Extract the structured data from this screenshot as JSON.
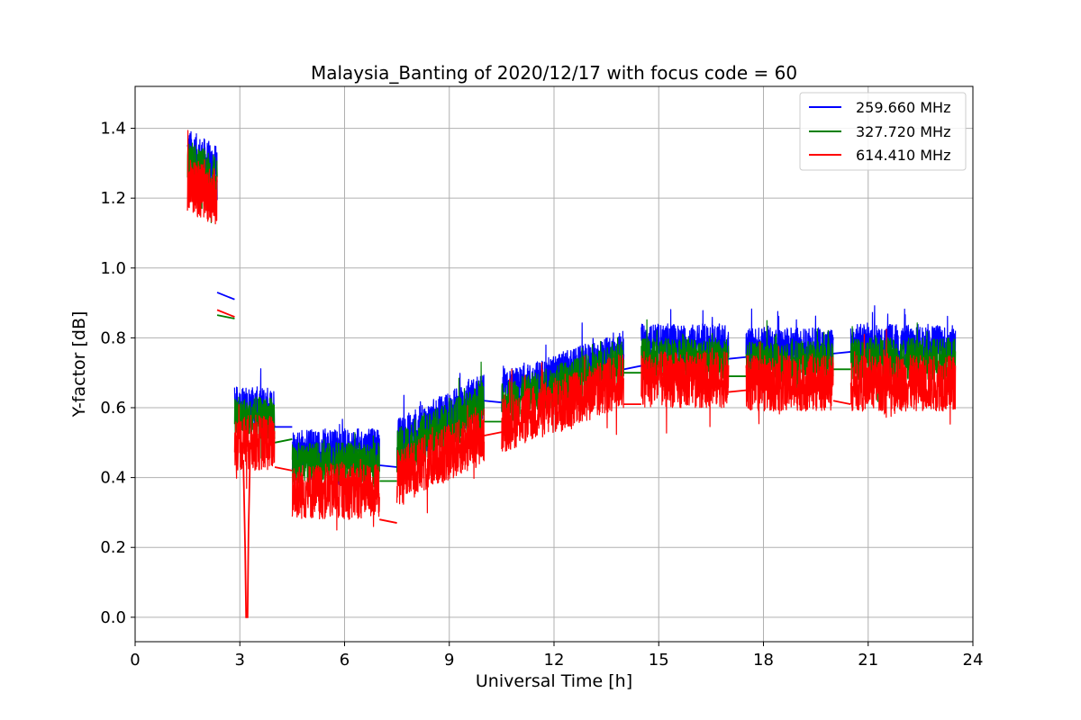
{
  "chart_data": {
    "type": "line",
    "title": "Malaysia_Banting of 2020/12/17 with focus code = 60",
    "xlabel": "Universal Time [h]",
    "ylabel": "Y-factor [dB]",
    "xlim": [
      0,
      24
    ],
    "ylim": [
      -0.07,
      1.52
    ],
    "xticks": [
      0,
      3,
      6,
      9,
      12,
      15,
      18,
      21,
      24
    ],
    "yticks": [
      0.0,
      0.2,
      0.4,
      0.6,
      0.8,
      1.0,
      1.2,
      1.4
    ],
    "ytick_labels": [
      "0.0",
      "0.2",
      "0.4",
      "0.6",
      "0.8",
      "1.0",
      "1.2",
      "1.4"
    ],
    "grid": true,
    "legend_position": "top-right",
    "series": [
      {
        "name": "259.660 MHz",
        "color": "#0000ff",
        "segments": [
          {
            "x": [
              1.5,
              2.35
            ],
            "center": [
              1.33,
              1.28
            ],
            "amp": 0.07
          },
          {
            "x": [
              2.85,
              4.0
            ],
            "center": [
              0.6,
              0.6
            ],
            "amp": 0.06
          },
          {
            "x": [
              4.5,
              7.0
            ],
            "center": [
              0.48,
              0.48
            ],
            "amp": 0.06
          },
          {
            "x": [
              7.5,
              10.0
            ],
            "center": [
              0.5,
              0.63
            ],
            "amp": 0.07
          },
          {
            "x": [
              10.5,
              14.0
            ],
            "center": [
              0.64,
              0.76
            ],
            "amp": 0.06
          },
          {
            "x": [
              14.5,
              17.0
            ],
            "center": [
              0.78,
              0.78
            ],
            "amp": 0.06
          },
          {
            "x": [
              17.5,
              20.0
            ],
            "center": [
              0.77,
              0.77
            ],
            "amp": 0.06
          },
          {
            "x": [
              20.5,
              23.5
            ],
            "center": [
              0.78,
              0.78
            ],
            "amp": 0.06
          }
        ],
        "bridges": [
          [
            [
              2.35,
              0.93
            ],
            [
              2.85,
              0.91
            ]
          ],
          [
            [
              4.0,
              0.545
            ],
            [
              4.5,
              0.545
            ]
          ],
          [
            [
              7.0,
              0.435
            ],
            [
              7.5,
              0.43
            ]
          ],
          [
            [
              10.0,
              0.62
            ],
            [
              10.5,
              0.615
            ]
          ],
          [
            [
              14.0,
              0.71
            ],
            [
              14.5,
              0.72
            ]
          ],
          [
            [
              17.0,
              0.74
            ],
            [
              17.5,
              0.745
            ]
          ],
          [
            [
              20.0,
              0.755
            ],
            [
              20.5,
              0.76
            ]
          ]
        ]
      },
      {
        "name": "327.720 MHz",
        "color": "#008000",
        "segments": [
          {
            "x": [
              1.5,
              2.35
            ],
            "center": [
              1.3,
              1.25
            ],
            "amp": 0.07
          },
          {
            "x": [
              2.85,
              4.0
            ],
            "center": [
              0.57,
              0.57
            ],
            "amp": 0.06
          },
          {
            "x": [
              4.5,
              7.0
            ],
            "center": [
              0.44,
              0.44
            ],
            "amp": 0.06
          },
          {
            "x": [
              7.5,
              10.0
            ],
            "center": [
              0.47,
              0.6
            ],
            "amp": 0.07
          },
          {
            "x": [
              10.5,
              14.0
            ],
            "center": [
              0.61,
              0.73
            ],
            "amp": 0.06
          },
          {
            "x": [
              14.5,
              17.0
            ],
            "center": [
              0.74,
              0.74
            ],
            "amp": 0.06
          },
          {
            "x": [
              17.5,
              20.0
            ],
            "center": [
              0.73,
              0.73
            ],
            "amp": 0.06
          },
          {
            "x": [
              20.5,
              23.5
            ],
            "center": [
              0.74,
              0.74
            ],
            "amp": 0.06
          }
        ],
        "bridges": [
          [
            [
              2.35,
              0.865
            ],
            [
              2.85,
              0.855
            ]
          ],
          [
            [
              4.0,
              0.5
            ],
            [
              4.5,
              0.51
            ]
          ],
          [
            [
              7.0,
              0.39
            ],
            [
              7.5,
              0.39
            ]
          ],
          [
            [
              10.0,
              0.56
            ],
            [
              10.5,
              0.56
            ]
          ],
          [
            [
              14.0,
              0.7
            ],
            [
              14.5,
              0.7
            ]
          ],
          [
            [
              17.0,
              0.69
            ],
            [
              17.5,
              0.69
            ]
          ],
          [
            [
              20.0,
              0.71
            ],
            [
              20.5,
              0.71
            ]
          ]
        ]
      },
      {
        "name": "614.410 MHz",
        "color": "#ff0000",
        "segments": [
          {
            "x": [
              1.5,
              2.35
            ],
            "center": [
              1.24,
              1.2
            ],
            "amp": 0.08
          },
          {
            "x": [
              2.85,
              4.0
            ],
            "center": [
              0.5,
              0.5
            ],
            "amp": 0.08
          },
          {
            "x": [
              4.5,
              7.0
            ],
            "center": [
              0.36,
              0.36
            ],
            "amp": 0.08
          },
          {
            "x": [
              7.5,
              10.0
            ],
            "center": [
              0.4,
              0.52
            ],
            "amp": 0.08
          },
          {
            "x": [
              10.5,
              14.0
            ],
            "center": [
              0.55,
              0.68
            ],
            "amp": 0.08
          },
          {
            "x": [
              14.5,
              17.0
            ],
            "center": [
              0.68,
              0.68
            ],
            "amp": 0.08
          },
          {
            "x": [
              17.5,
              20.0
            ],
            "center": [
              0.67,
              0.67
            ],
            "amp": 0.08
          },
          {
            "x": [
              20.5,
              23.5
            ],
            "center": [
              0.67,
              0.67
            ],
            "amp": 0.08
          }
        ],
        "bridges": [
          [
            [
              2.35,
              0.88
            ],
            [
              2.85,
              0.86
            ]
          ],
          [
            [
              4.0,
              0.43
            ],
            [
              4.5,
              0.42
            ]
          ],
          [
            [
              7.0,
              0.28
            ],
            [
              7.5,
              0.27
            ]
          ],
          [
            [
              10.0,
              0.52
            ],
            [
              10.5,
              0.53
            ]
          ],
          [
            [
              14.0,
              0.61
            ],
            [
              14.5,
              0.61
            ]
          ],
          [
            [
              17.0,
              0.645
            ],
            [
              17.5,
              0.65
            ]
          ],
          [
            [
              20.0,
              0.62
            ],
            [
              20.5,
              0.61
            ]
          ]
        ],
        "spike": [
          [
            3.1,
            0.45
          ],
          [
            3.15,
            0.2
          ],
          [
            3.18,
            0.0
          ],
          [
            3.22,
            0.0
          ],
          [
            3.25,
            0.25
          ],
          [
            3.3,
            0.5
          ]
        ]
      }
    ]
  }
}
